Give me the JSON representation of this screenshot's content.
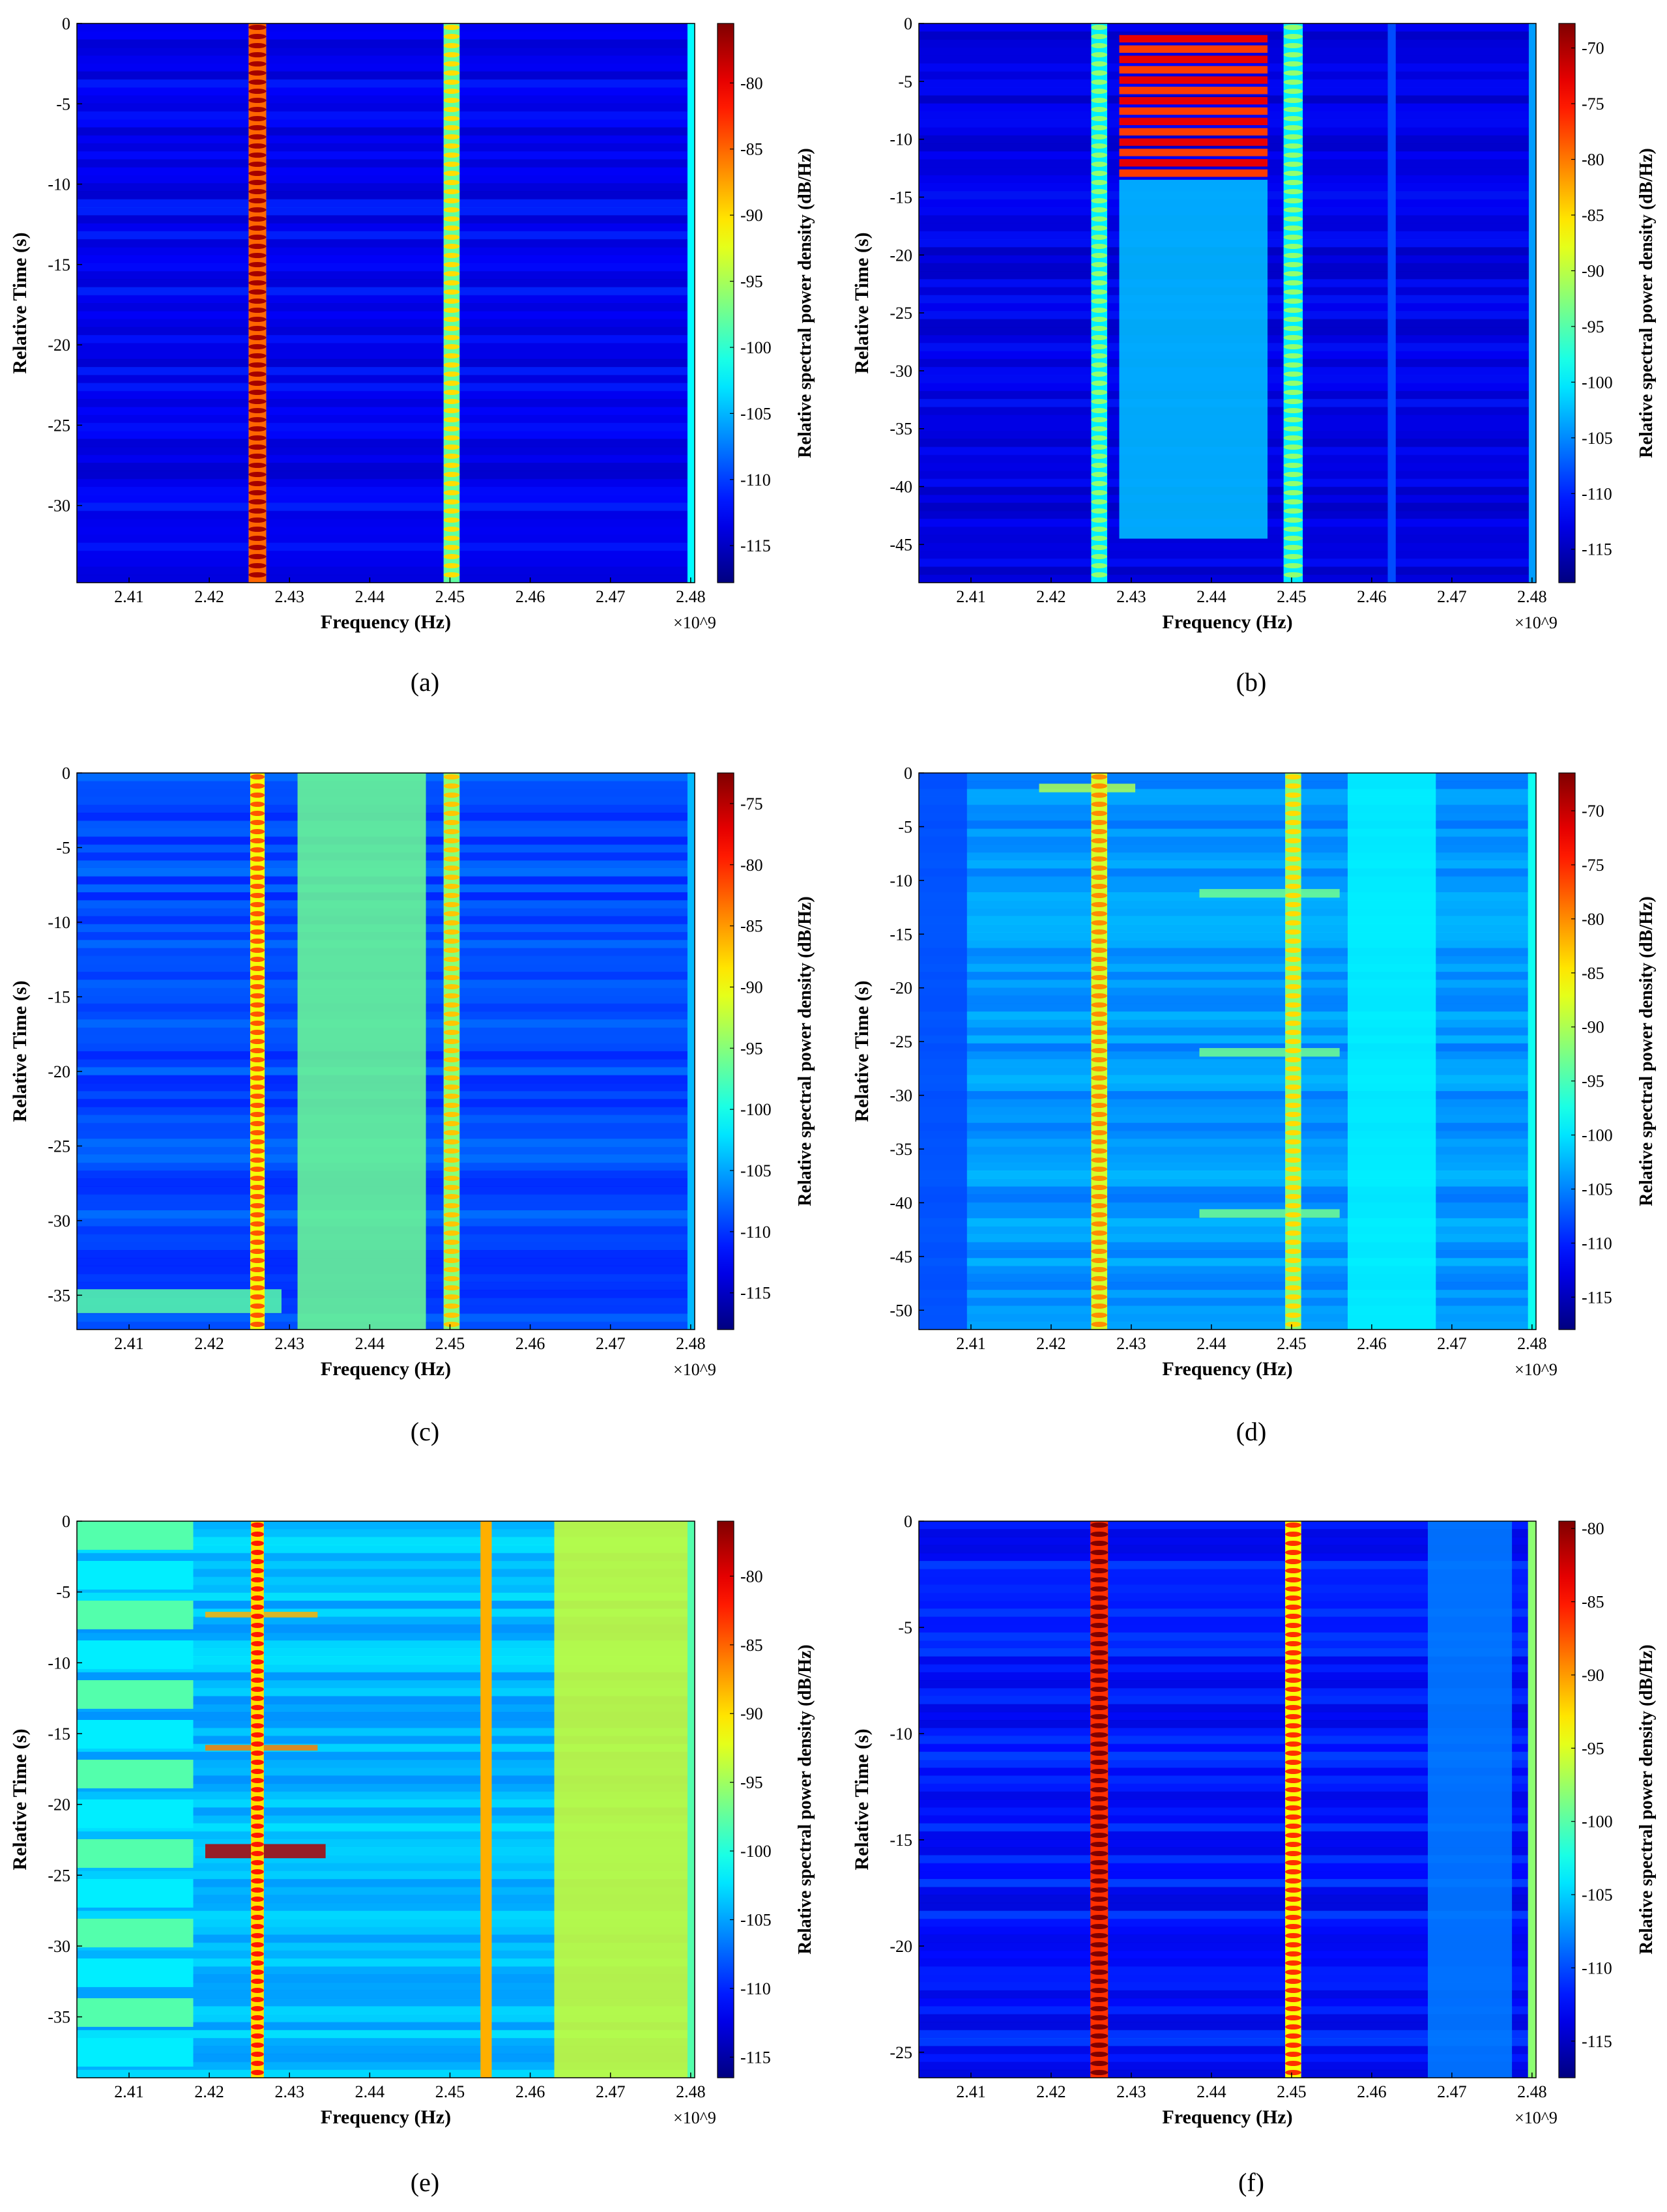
{
  "figure": {
    "panels": [
      {
        "label": "(a)",
        "letter": "a",
        "chart_type": "heatmap",
        "xlabel": "Frequency (Hz)",
        "x_exponent": "×10^9",
        "xticks": [
          "2.41",
          "2.42",
          "2.43",
          "2.44",
          "2.45",
          "2.46",
          "2.47",
          "2.48"
        ],
        "xtick_values": [
          2.41,
          2.42,
          2.43,
          2.44,
          2.45,
          2.46,
          2.47,
          2.48
        ],
        "xlim": [
          2.4035,
          2.4805
        ],
        "ylabel": "Relative Time (s)",
        "yticks": [
          "0",
          "-5",
          "-10",
          "-15",
          "-20",
          "-25",
          "-30"
        ],
        "ytick_values": [
          0,
          -5,
          -10,
          -15,
          -20,
          -25,
          -30
        ],
        "ylim": [
          -34.8,
          0
        ],
        "cbar_label": "Relative spectral power density (dB/Hz)",
        "cbar_ticks": [
          "-80",
          "-85",
          "-90",
          "-95",
          "-100",
          "-105",
          "-110",
          "-115"
        ],
        "cbar_tick_values": [
          -80,
          -85,
          -90,
          -95,
          -100,
          -105,
          -110,
          -115
        ],
        "cbar_range": [
          -117.8,
          -75.5
        ],
        "base_level": -113,
        "lines": [
          {
            "f": 2.426,
            "w": 0.0011,
            "level": -85,
            "pulse": true
          },
          {
            "f": 2.4502,
            "w": 0.001,
            "level": -98,
            "pulse": true
          },
          {
            "f": 2.4802,
            "w": 0.0006,
            "level": -102
          }
        ],
        "blocks": []
      },
      {
        "label": "(b)",
        "letter": "b",
        "chart_type": "heatmap",
        "xlabel": "Frequency (Hz)",
        "x_exponent": "×10^9",
        "xticks": [
          "2.41",
          "2.42",
          "2.43",
          "2.44",
          "2.45",
          "2.46",
          "2.47",
          "2.48"
        ],
        "xtick_values": [
          2.41,
          2.42,
          2.43,
          2.44,
          2.45,
          2.46,
          2.47,
          2.48
        ],
        "xlim": [
          2.4035,
          2.4805
        ],
        "ylabel": "Relative Time (s)",
        "yticks": [
          "0",
          "-5",
          "-10",
          "-15",
          "-20",
          "-25",
          "-30",
          "-35",
          "-40",
          "-45"
        ],
        "ytick_values": [
          0,
          -5,
          -10,
          -15,
          -20,
          -25,
          -30,
          -35,
          -40,
          -45
        ],
        "ylim": [
          -48.3,
          0
        ],
        "cbar_label": "Relative spectral power density (dB/Hz)",
        "cbar_ticks": [
          "-70",
          "-75",
          "-80",
          "-85",
          "-90",
          "-95",
          "-100",
          "-105",
          "-110",
          "-115"
        ],
        "cbar_tick_values": [
          -70,
          -75,
          -80,
          -85,
          -90,
          -95,
          -100,
          -105,
          -110,
          -115
        ],
        "cbar_range": [
          -118,
          -67.8
        ],
        "base_level": -113,
        "lines": [
          {
            "f": 2.426,
            "w": 0.001,
            "level": -100,
            "pulse": true
          },
          {
            "f": 2.4502,
            "w": 0.0012,
            "level": -100,
            "pulse": true
          },
          {
            "f": 2.4802,
            "w": 0.0006,
            "level": -104
          },
          {
            "f": 2.4625,
            "w": 0.0005,
            "level": -108
          }
        ],
        "blocks": [
          {
            "f0": 2.4285,
            "f1": 2.447,
            "t0": -1.0,
            "t1": -13.5,
            "level": -75,
            "striped": true
          },
          {
            "f0": 2.4285,
            "f1": 2.447,
            "t0": -13.5,
            "t1": -44.5,
            "level": -102
          }
        ]
      },
      {
        "label": "(c)",
        "letter": "c",
        "chart_type": "heatmap",
        "xlabel": "Frequency (Hz)",
        "x_exponent": "×10^9",
        "xticks": [
          "2.41",
          "2.42",
          "2.43",
          "2.44",
          "2.45",
          "2.46",
          "2.47",
          "2.48"
        ],
        "xtick_values": [
          2.41,
          2.42,
          2.43,
          2.44,
          2.45,
          2.46,
          2.47,
          2.48
        ],
        "xlim": [
          2.4035,
          2.4805
        ],
        "ylabel": "Relative Time (s)",
        "yticks": [
          "0",
          "-5",
          "-10",
          "-15",
          "-20",
          "-25",
          "-30",
          "-35"
        ],
        "ytick_values": [
          0,
          -5,
          -10,
          -15,
          -20,
          -25,
          -30,
          -35
        ],
        "ylim": [
          -37.3,
          0
        ],
        "cbar_label": "Relative spectral power density (dB/Hz)",
        "cbar_ticks": [
          "-75",
          "-80",
          "-85",
          "-90",
          "-95",
          "-100",
          "-105",
          "-110",
          "-115"
        ],
        "cbar_tick_values": [
          -75,
          -80,
          -85,
          -90,
          -95,
          -100,
          -105,
          -110,
          -115
        ],
        "cbar_range": [
          -118,
          -72.5
        ],
        "base_level": -109,
        "lines": [
          {
            "f": 2.426,
            "w": 0.0009,
            "level": -90,
            "pulse": true
          },
          {
            "f": 2.4502,
            "w": 0.001,
            "level": -95,
            "pulse": true
          },
          {
            "f": 2.4802,
            "w": 0.0006,
            "level": -104
          }
        ],
        "blocks": [
          {
            "f0": 2.431,
            "f1": 2.447,
            "t0": 0,
            "t1": -37.3,
            "level": -96
          },
          {
            "f0": 2.4035,
            "f1": 2.429,
            "t0": -34.6,
            "t1": -36.2,
            "level": -97
          }
        ]
      },
      {
        "label": "(d)",
        "letter": "d",
        "chart_type": "heatmap",
        "xlabel": "Frequency (Hz)",
        "x_exponent": "×10^9",
        "xticks": [
          "2.41",
          "2.42",
          "2.43",
          "2.44",
          "2.45",
          "2.46",
          "2.47",
          "2.48"
        ],
        "xtick_values": [
          2.41,
          2.42,
          2.43,
          2.44,
          2.45,
          2.46,
          2.47,
          2.48
        ],
        "xlim": [
          2.4035,
          2.4805
        ],
        "ylabel": "Relative Time (s)",
        "yticks": [
          "0",
          "-5",
          "-10",
          "-15",
          "-20",
          "-25",
          "-30",
          "-35",
          "-40",
          "-45",
          "-50"
        ],
        "ytick_values": [
          0,
          -5,
          -10,
          -15,
          -20,
          -25,
          -30,
          -35,
          -40,
          -45,
          -50
        ],
        "ylim": [
          -51.8,
          0
        ],
        "cbar_label": "Relative spectral power density (dB/Hz)",
        "cbar_ticks": [
          "-70",
          "-75",
          "-80",
          "-85",
          "-90",
          "-95",
          "-100",
          "-105",
          "-110",
          "-115"
        ],
        "cbar_tick_values": [
          -70,
          -75,
          -80,
          -85,
          -90,
          -95,
          -100,
          -105,
          -110,
          -115
        ],
        "cbar_range": [
          -118,
          -66.5
        ],
        "base_level": -104,
        "lines": [
          {
            "f": 2.426,
            "w": 0.001,
            "level": -88,
            "pulse": true
          },
          {
            "f": 2.4502,
            "w": 0.001,
            "level": -92,
            "pulse": true
          },
          {
            "f": 2.4802,
            "w": 0.0007,
            "level": -98
          }
        ],
        "blocks": [
          {
            "f0": 2.4035,
            "f1": 2.4095,
            "t0": 0,
            "t1": -51.8,
            "level": -108
          },
          {
            "f0": 2.457,
            "f1": 2.468,
            "t0": 0,
            "t1": -51.8,
            "level": -99
          },
          {
            "f0": 2.4185,
            "f1": 2.4305,
            "t0": -1.0,
            "t1": -1.8,
            "level": -90
          },
          {
            "f0": 2.4385,
            "f1": 2.456,
            "t0": -10.8,
            "t1": -11.6,
            "level": -93
          },
          {
            "f0": 2.4385,
            "f1": 2.456,
            "t0": -25.6,
            "t1": -26.4,
            "level": -93
          },
          {
            "f0": 2.4385,
            "f1": 2.456,
            "t0": -40.6,
            "t1": -41.4,
            "level": -93
          }
        ]
      },
      {
        "label": "(e)",
        "letter": "e",
        "chart_type": "heatmap",
        "xlabel": "Frequency (Hz)",
        "x_exponent": "×10^9",
        "xticks": [
          "2.41",
          "2.42",
          "2.43",
          "2.44",
          "2.45",
          "2.46",
          "2.47",
          "2.48"
        ],
        "xtick_values": [
          2.41,
          2.42,
          2.43,
          2.44,
          2.45,
          2.46,
          2.47,
          2.48
        ],
        "xlim": [
          2.4035,
          2.4805
        ],
        "ylabel": "Relative Time (s)",
        "yticks": [
          "0",
          "-5",
          "-10",
          "-15",
          "-20",
          "-25",
          "-30",
          "-35"
        ],
        "ytick_values": [
          0,
          -5,
          -10,
          -15,
          -20,
          -25,
          -30,
          -35
        ],
        "ylim": [
          -39.3,
          0
        ],
        "cbar_label": "Relative spectral power density (dB/Hz)",
        "cbar_ticks": [
          "-80",
          "-85",
          "-90",
          "-95",
          "-100",
          "-105",
          "-110",
          "-115"
        ],
        "cbar_tick_values": [
          -80,
          -85,
          -90,
          -95,
          -100,
          -105,
          -110,
          -115
        ],
        "cbar_range": [
          -116.5,
          -76
        ],
        "base_level": -104,
        "lines": [
          {
            "f": 2.426,
            "w": 0.0008,
            "level": -90,
            "pulse": true
          },
          {
            "f": 2.4545,
            "w": 0.0007,
            "level": -88
          },
          {
            "f": 2.4802,
            "w": 0.0006,
            "level": -98
          }
        ],
        "blocks": [
          {
            "f0": 2.4035,
            "f1": 2.418,
            "t0": 0,
            "t1": -39.3,
            "level": -100,
            "striped": true
          },
          {
            "f0": 2.463,
            "f1": 2.4805,
            "t0": 0,
            "t1": -39.3,
            "level": -93
          },
          {
            "f0": 2.4195,
            "f1": 2.4345,
            "t0": -22.8,
            "t1": -23.8,
            "level": -78
          },
          {
            "f0": 2.4195,
            "f1": 2.4335,
            "t0": -15.8,
            "t1": -16.2,
            "level": -86
          },
          {
            "f0": 2.4195,
            "f1": 2.4335,
            "t0": -6.4,
            "t1": -6.8,
            "level": -88
          }
        ]
      },
      {
        "label": "(f)",
        "letter": "f",
        "chart_type": "heatmap",
        "xlabel": "Frequency (Hz)",
        "x_exponent": "×10^9",
        "xticks": [
          "2.41",
          "2.42",
          "2.43",
          "2.44",
          "2.45",
          "2.46",
          "2.47",
          "2.48"
        ],
        "xtick_values": [
          2.41,
          2.42,
          2.43,
          2.44,
          2.45,
          2.46,
          2.47,
          2.48
        ],
        "xlim": [
          2.4035,
          2.4805
        ],
        "ylabel": "Relative Time (s)",
        "yticks": [
          "0",
          "-5",
          "-10",
          "-15",
          "-20",
          "-25"
        ],
        "ytick_values": [
          0,
          -5,
          -10,
          -15,
          -20,
          -25
        ],
        "ylim": [
          -26.2,
          0
        ],
        "cbar_label": "Relative spectral power density (dB/Hz)",
        "cbar_ticks": [
          "-80",
          "-85",
          "-90",
          "-95",
          "-100",
          "-105",
          "-110",
          "-115"
        ],
        "cbar_tick_values": [
          -80,
          -85,
          -90,
          -95,
          -100,
          -105,
          -110,
          -115
        ],
        "cbar_range": [
          -117.5,
          -79.5
        ],
        "base_level": -112,
        "lines": [
          {
            "f": 2.426,
            "w": 0.0011,
            "level": -86,
            "pulse": true
          },
          {
            "f": 2.4502,
            "w": 0.001,
            "level": -94,
            "pulse": true
          },
          {
            "f": 2.4802,
            "w": 0.0007,
            "level": -98
          }
        ],
        "blocks": [
          {
            "f0": 2.467,
            "f1": 2.4775,
            "t0": 0,
            "t1": -26.2,
            "level": -108
          }
        ]
      }
    ]
  },
  "chart_data": [
    {
      "type": "heatmap",
      "title": "(a)",
      "xlabel": "Frequency (Hz)",
      "ylabel": "Relative Time (s)",
      "colorbar": "Relative spectral power density (dB/Hz)",
      "xlim": [
        2.4035,
        2.4805
      ],
      "ylim": [
        -34.8,
        0
      ],
      "clim": [
        -117.8,
        -75.5
      ],
      "x_scale": "x10^9"
    },
    {
      "type": "heatmap",
      "title": "(b)",
      "xlabel": "Frequency (Hz)",
      "ylabel": "Relative Time (s)",
      "colorbar": "Relative spectral power density (dB/Hz)",
      "xlim": [
        2.4035,
        2.4805
      ],
      "ylim": [
        -48.3,
        0
      ],
      "clim": [
        -118,
        -67.8
      ],
      "x_scale": "x10^9"
    },
    {
      "type": "heatmap",
      "title": "(c)",
      "xlabel": "Frequency (Hz)",
      "ylabel": "Relative Time (s)",
      "colorbar": "Relative spectral power density (dB/Hz)",
      "xlim": [
        2.4035,
        2.4805
      ],
      "ylim": [
        -37.3,
        0
      ],
      "clim": [
        -118,
        -72.5
      ],
      "x_scale": "x10^9"
    },
    {
      "type": "heatmap",
      "title": "(d)",
      "xlabel": "Frequency (Hz)",
      "ylabel": "Relative Time (s)",
      "colorbar": "Relative spectral power density (dB/Hz)",
      "xlim": [
        2.4035,
        2.4805
      ],
      "ylim": [
        -51.8,
        0
      ],
      "clim": [
        -118,
        -66.5
      ],
      "x_scale": "x10^9"
    },
    {
      "type": "heatmap",
      "title": "(e)",
      "xlabel": "Frequency (Hz)",
      "ylabel": "Relative Time (s)",
      "colorbar": "Relative spectral power density (dB/Hz)",
      "xlim": [
        2.4035,
        2.4805
      ],
      "ylim": [
        -39.3,
        0
      ],
      "clim": [
        -116.5,
        -76
      ],
      "x_scale": "x10^9"
    },
    {
      "type": "heatmap",
      "title": "(f)",
      "xlabel": "Frequency (Hz)",
      "ylabel": "Relative Time (s)",
      "colorbar": "Relative spectral power density (dB/Hz)",
      "xlim": [
        2.4035,
        2.4805
      ],
      "ylim": [
        -26.2,
        0
      ],
      "clim": [
        -117.5,
        -79.5
      ],
      "x_scale": "x10^9"
    }
  ]
}
